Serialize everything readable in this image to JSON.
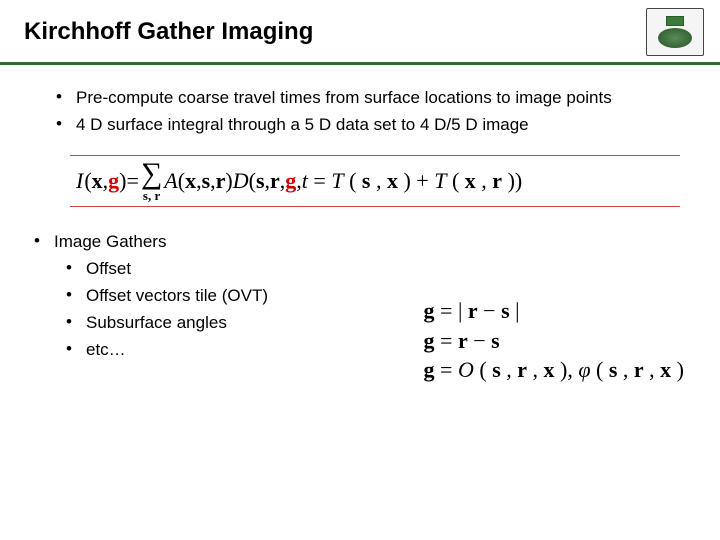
{
  "title": "Kirchhoff Gather Imaging",
  "colors": {
    "divider": "#2a6e2a",
    "formula_border": "#c44",
    "highlight_red": "#d00000",
    "text": "#000000",
    "background": "#ffffff"
  },
  "bullets": [
    "Pre-compute coarse travel times from surface locations to image points",
    "4 D surface integral through a 5 D data set to 4 D/5 D image"
  ],
  "formula": {
    "lhs_I": "I",
    "lhs_open": "(",
    "lhs_x": "x",
    "lhs_comma": ", ",
    "lhs_g": "g",
    "lhs_close": ")",
    "eq": " = ",
    "sigma": "∑",
    "sigma_sub": "s, r",
    "A": "A",
    "A_args_open": "(",
    "A_x": "x",
    "A_c1": ", ",
    "A_s": "s",
    "A_c2": ", ",
    "A_r": "r",
    "A_close": ")",
    "D": "D",
    "D_open": "(",
    "D_s": "s",
    "D_c1": ",  ",
    "D_r": "r",
    "D_c2": ",  ",
    "D_g": "g",
    "D_c3": ",  ",
    "t_var": "t",
    "t_eq": " = ",
    "T1": "T",
    "T1_open": "(",
    "T1_s": "s",
    "T1_c": ", ",
    "T1_x": "x",
    "T1_close": ")",
    "plus": " + ",
    "T2": "T",
    "T2_open": "(",
    "T2_x": "x",
    "T2_c": ", ",
    "T2_r": "r",
    "T2_close": "))"
  },
  "gathers": {
    "heading": "Image Gathers",
    "items": [
      "Offset",
      "Offset vectors tile (OVT)",
      "Subsurface angles",
      "etc…"
    ]
  },
  "defs": {
    "line1_g": "g",
    "line1_eq": " = ",
    "line1_bar1": "|",
    "line1_r": "r",
    "line1_minus": " − ",
    "line1_s": "s",
    "line1_bar2": "|",
    "line2_g": "g",
    "line2_eq": " = ",
    "line2_r": "r",
    "line2_minus": " − ",
    "line2_s": "s",
    "line3_g": "g",
    "line3_eq": " = ",
    "line3_O": "O",
    "line3_open": "(",
    "line3_s": "s",
    "line3_c1": ",  ",
    "line3_r": "r",
    "line3_c2": ",  ",
    "line3_x": "x",
    "line3_close": "),  ",
    "line3_phi": "φ",
    "line3_popen": "(",
    "line3_ps": "s",
    "line3_pc1": ",  ",
    "line3_pr": "r",
    "line3_pc2": ",  ",
    "line3_px": "x",
    "line3_pclose": ")"
  },
  "typography": {
    "title_fontsize": 24,
    "body_fontsize": 17,
    "formula_fontsize": 22,
    "font_body": "Arial",
    "font_math": "Times New Roman"
  }
}
